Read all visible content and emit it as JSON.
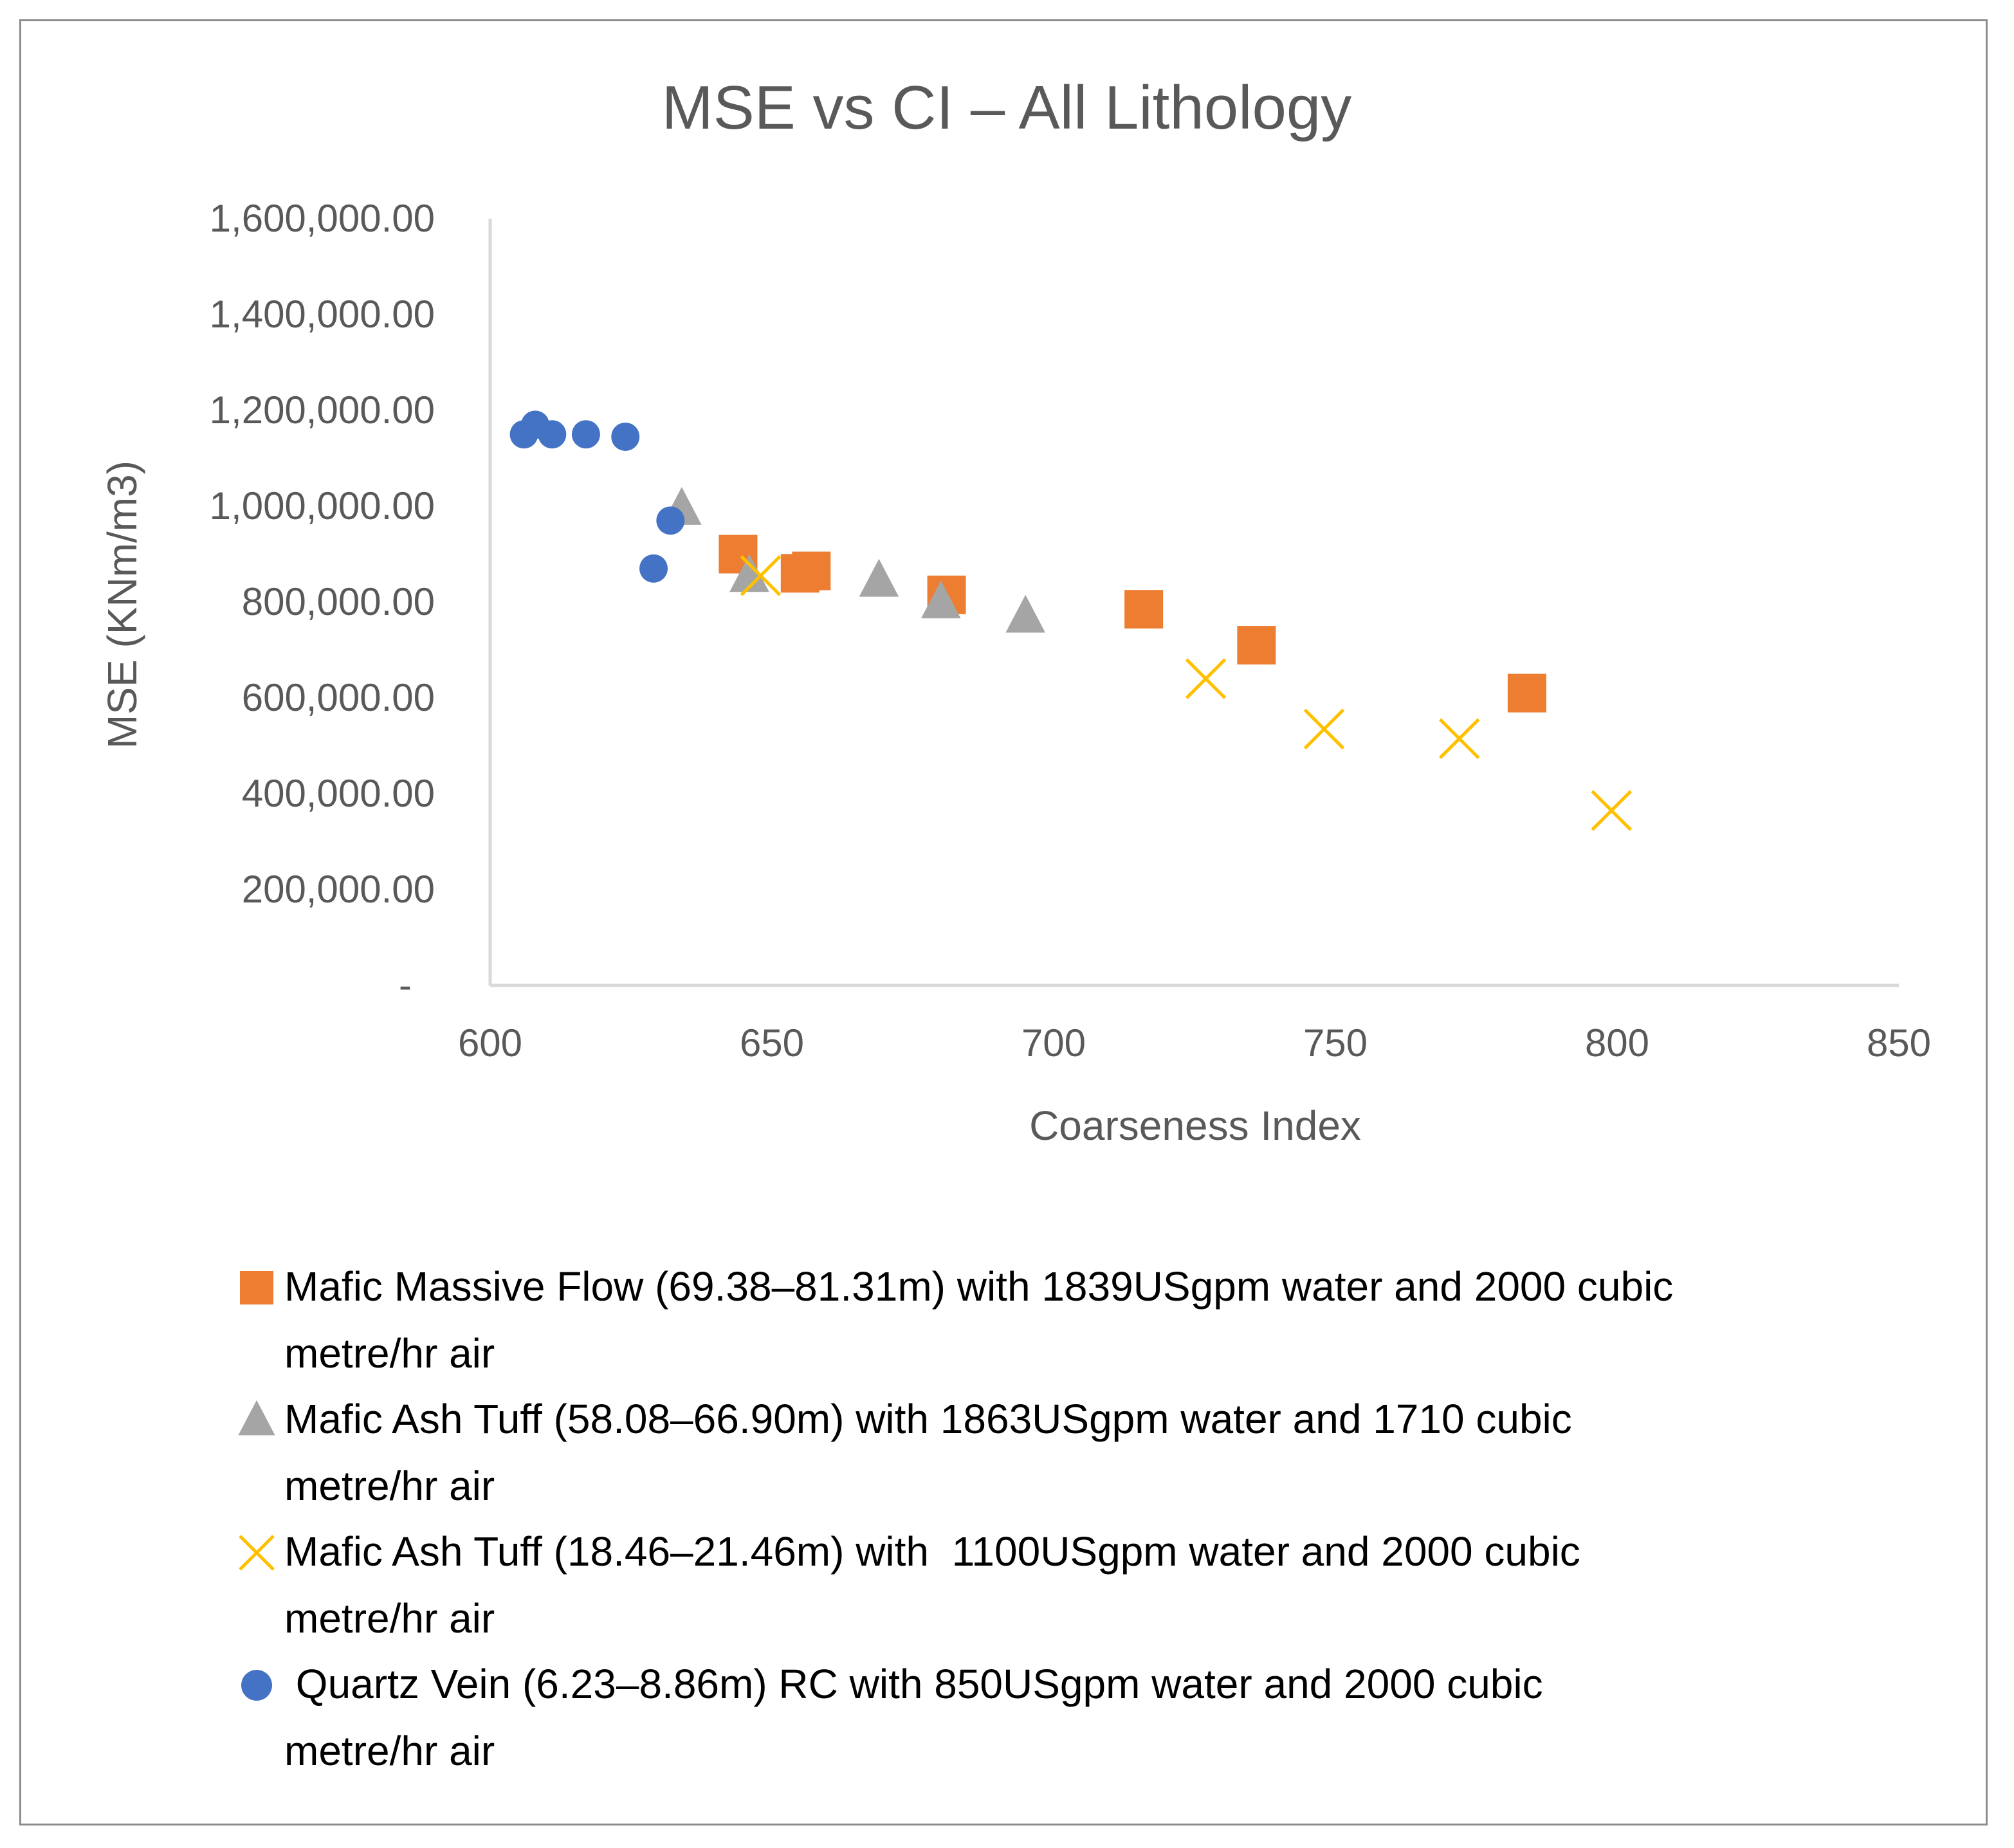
{
  "chart_data": {
    "type": "scatter",
    "title": "MSE vs CI – All Lithology",
    "xlabel": "Coarseness  Index",
    "ylabel": "MSE (KNm/m3)",
    "xlim": [
      600,
      850
    ],
    "ylim": [
      0,
      1600000
    ],
    "x_ticks": [
      {
        "value": 600,
        "label": "600"
      },
      {
        "value": 650,
        "label": "650"
      },
      {
        "value": 700,
        "label": "700"
      },
      {
        "value": 750,
        "label": "750"
      },
      {
        "value": 800,
        "label": "800"
      },
      {
        "value": 850,
        "label": "850"
      }
    ],
    "y_ticks": [
      {
        "value": 0,
        "label": "-"
      },
      {
        "value": 200000,
        "label": "200,000.00"
      },
      {
        "value": 400000,
        "label": "400,000.00"
      },
      {
        "value": 600000,
        "label": "600,000.00"
      },
      {
        "value": 800000,
        "label": "800,000.00"
      },
      {
        "value": 1000000,
        "label": "1,000,000.00"
      },
      {
        "value": 1200000,
        "label": "1,200,000.00"
      },
      {
        "value": 1400000,
        "label": "1,400,000.00"
      },
      {
        "value": 1600000,
        "label": "1,600,000.00"
      }
    ],
    "grid": false,
    "legend_position": "bottom",
    "series": [
      {
        "name": "Mafic Massive Flow (69.38–81.31m) with 1839USgpm water and 2000 cubic metre/hr air",
        "legend_lines": [
          "Mafic Massive Flow (69.38–81.31m) with 1839USgpm water and 2000 cubic",
          "metre/hr air"
        ],
        "marker": "square",
        "color": "#ED7D31",
        "points": [
          {
            "x": 644,
            "y": 900000
          },
          {
            "x": 655,
            "y": 860000
          },
          {
            "x": 657,
            "y": 865000
          },
          {
            "x": 681,
            "y": 815000
          },
          {
            "x": 716,
            "y": 785000
          },
          {
            "x": 736,
            "y": 710000
          },
          {
            "x": 784,
            "y": 610000
          }
        ]
      },
      {
        "name": "Mafic Ash Tuff (58.08–66.90m) with 1863USgpm water and 1710 cubic metre/hr air",
        "legend_lines": [
          "Mafic Ash Tuff (58.08–66.90m) with 1863USgpm water and 1710 cubic",
          "metre/hr air"
        ],
        "marker": "triangle",
        "color": "#A5A5A5",
        "points": [
          {
            "x": 634,
            "y": 995000
          },
          {
            "x": 646,
            "y": 855000
          },
          {
            "x": 669,
            "y": 845000
          },
          {
            "x": 680,
            "y": 800000
          },
          {
            "x": 695,
            "y": 770000
          }
        ]
      },
      {
        "name": "Mafic Ash Tuff (18.46–21.46m) with  1100USgpm water and 2000 cubic metre/hr air",
        "legend_lines": [
          "Mafic Ash Tuff (18.46–21.46m) with  1100USgpm water and 2000 cubic",
          "metre/hr air"
        ],
        "marker": "x",
        "color": "#FFC000",
        "points": [
          {
            "x": 648,
            "y": 855000
          },
          {
            "x": 727,
            "y": 640000
          },
          {
            "x": 748,
            "y": 535000
          },
          {
            "x": 772,
            "y": 515000
          },
          {
            "x": 799,
            "y": 365000
          }
        ]
      },
      {
        "name": " Quartz Vein (6.23–8.86m) RC with 850USgpm water and 2000 cubic metre/hr air",
        "legend_lines": [
          " Quartz Vein (6.23–8.86m) RC with 850USgpm water and 2000 cubic",
          "metre/hr air"
        ],
        "marker": "circle",
        "color": "#4472C4",
        "points": [
          {
            "x": 606,
            "y": 1150000
          },
          {
            "x": 608,
            "y": 1170000
          },
          {
            "x": 611,
            "y": 1150000
          },
          {
            "x": 617,
            "y": 1150000
          },
          {
            "x": 624,
            "y": 1145000
          },
          {
            "x": 632,
            "y": 970000
          },
          {
            "x": 629,
            "y": 870000
          }
        ]
      }
    ]
  }
}
